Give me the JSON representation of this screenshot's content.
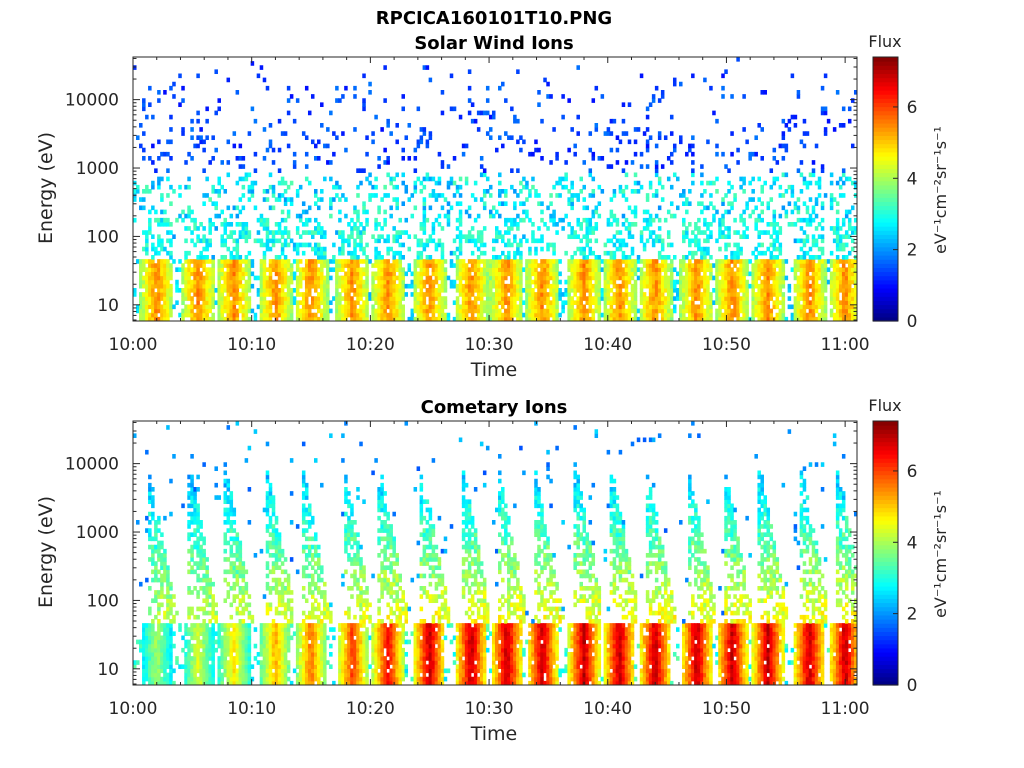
{
  "figure": {
    "title": "RPCICA160101T10.PNG"
  },
  "chart_data": [
    {
      "type": "heatmap",
      "title": "Solar Wind Ions",
      "xlabel": "Time",
      "ylabel": "Energy (eV)",
      "xlim": [
        "10:00",
        "11:01"
      ],
      "x_ticks": [
        "10:00",
        "10:10",
        "10:20",
        "10:30",
        "10:40",
        "10:50",
        "11:00"
      ],
      "ylim": [
        5.8,
        42000
      ],
      "y_scale": "log",
      "y_ticks": [
        {
          "value": 10,
          "label": "10"
        },
        {
          "value": 100,
          "label": "100"
        },
        {
          "value": 1000,
          "label": "1000"
        },
        {
          "value": 10000,
          "label": "10000"
        }
      ],
      "colorbar": {
        "title": "Flux",
        "label": "eV⁻¹cm⁻²sr⁻¹s⁻¹",
        "range": [
          0,
          7.4
        ],
        "ticks": [
          "0",
          "2",
          "4",
          "6"
        ],
        "colormap": "jet"
      },
      "bursts_minutes": [
        2.0,
        5.5,
        8.5,
        12.0,
        15.0,
        18.5,
        21.5,
        25.0,
        28.5,
        31.5,
        34.5,
        38.0,
        41.0,
        44.0,
        47.5,
        50.5,
        53.5,
        57.0,
        60.0
      ],
      "bands": [
        {
          "name": "low-energy band",
          "energy_range": [
            6,
            45
          ],
          "peak_flux": 5.0
        },
        {
          "name": "mid-energy band",
          "energy_range": [
            200,
            800
          ],
          "peak_flux": 3.2
        },
        {
          "name": "high-energy background",
          "energy_range": [
            900,
            30000
          ],
          "peak_flux": 1.8
        }
      ]
    },
    {
      "type": "heatmap",
      "title": "Cometary Ions",
      "xlabel": "Time",
      "ylabel": "Energy (eV)",
      "xlim": [
        "10:00",
        "11:01"
      ],
      "x_ticks": [
        "10:00",
        "10:10",
        "10:20",
        "10:30",
        "10:40",
        "10:50",
        "11:00"
      ],
      "ylim": [
        5.8,
        42000
      ],
      "y_scale": "log",
      "y_ticks": [
        {
          "value": 10,
          "label": "10"
        },
        {
          "value": 100,
          "label": "100"
        },
        {
          "value": 1000,
          "label": "1000"
        },
        {
          "value": 10000,
          "label": "10000"
        }
      ],
      "colorbar": {
        "title": "Flux",
        "label": "eV⁻¹cm⁻²sr⁻¹s⁻¹",
        "range": [
          0,
          7.4
        ],
        "ticks": [
          "0",
          "2",
          "4",
          "6"
        ],
        "colormap": "jet"
      },
      "bursts_minutes": [
        2.0,
        5.5,
        8.5,
        12.0,
        15.0,
        18.5,
        21.5,
        25.0,
        28.5,
        31.5,
        34.5,
        38.0,
        41.0,
        44.0,
        47.5,
        50.5,
        53.5,
        57.0,
        60.0
      ],
      "bands": [
        {
          "name": "low-energy band",
          "energy_range": [
            6,
            45
          ],
          "peak_flux": 6.6
        },
        {
          "name": "dispersed tails",
          "energy_range": [
            45,
            6000
          ],
          "peak_flux": 3.6
        }
      ]
    }
  ]
}
